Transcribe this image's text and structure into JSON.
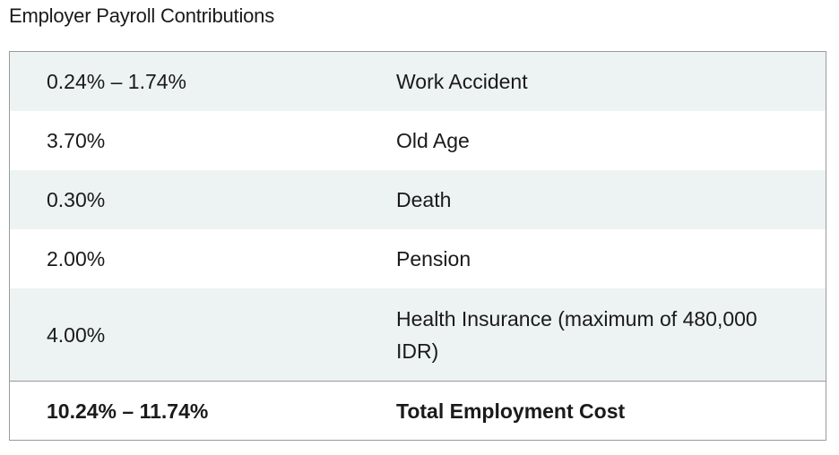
{
  "title": "Employer Payroll Contributions",
  "rows": [
    {
      "rate": "0.24% – 1.74%",
      "label": "Work Accident"
    },
    {
      "rate": "3.70%",
      "label": "Old Age"
    },
    {
      "rate": "0.30%",
      "label": "Death"
    },
    {
      "rate": "2.00%",
      "label": "Pension"
    },
    {
      "rate": "4.00%",
      "label": "Health Insurance (maximum of 480,000 IDR)"
    }
  ],
  "total": {
    "rate": "10.24% – 11.74%",
    "label": "Total Employment Cost"
  },
  "colors": {
    "shaded_row": "#edf3f2",
    "border": "#9a9a9a",
    "text": "#1a1a1a"
  }
}
